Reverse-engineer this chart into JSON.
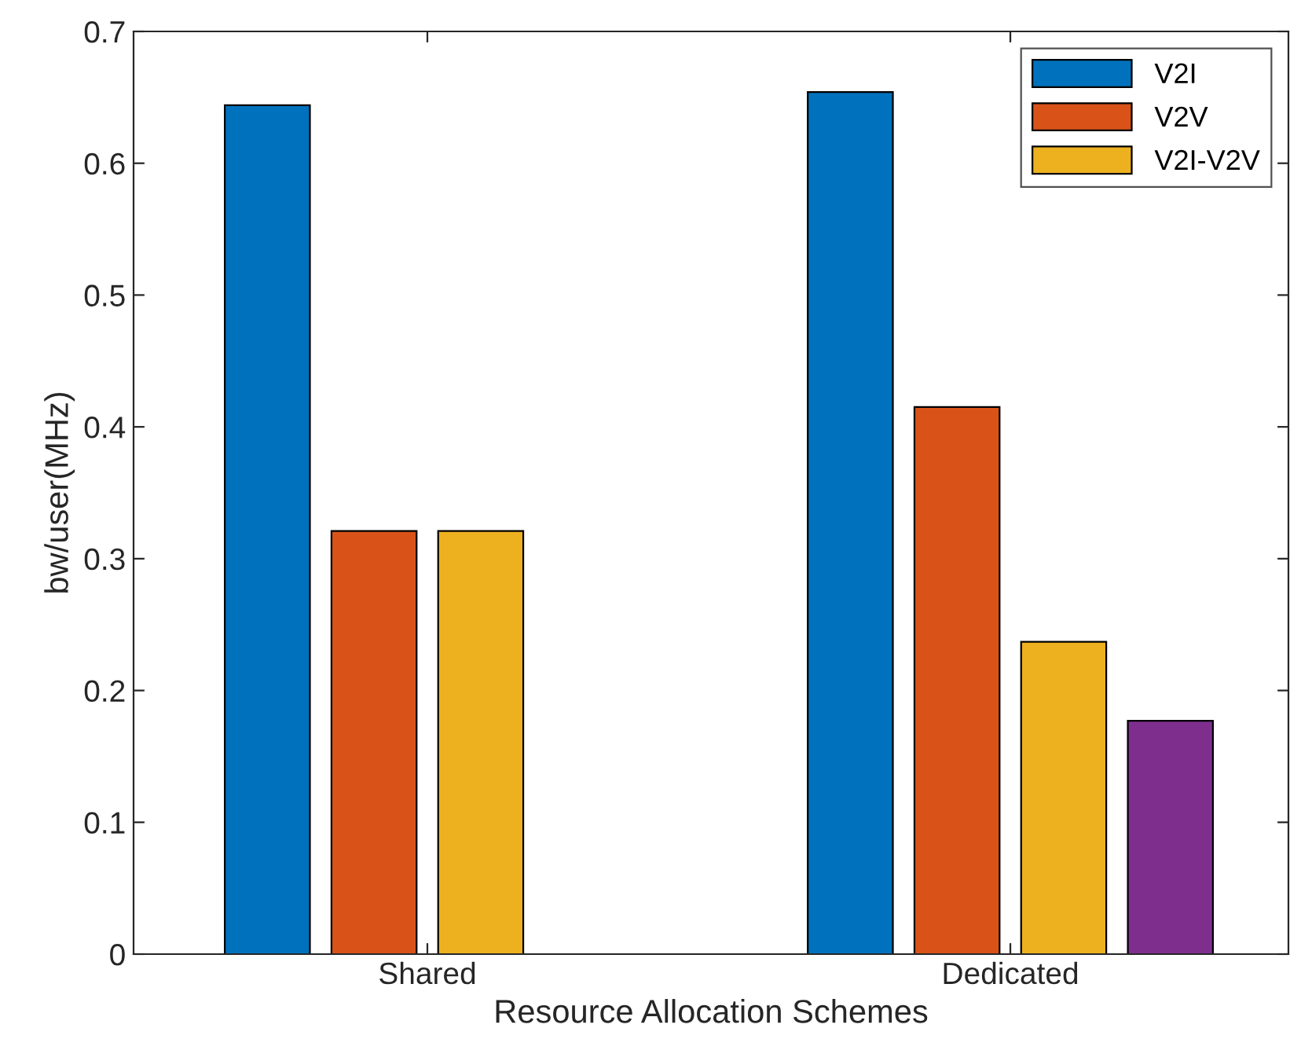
{
  "chart_data": {
    "type": "bar",
    "xlabel": "Resource Allocation Schemes",
    "ylabel": "bw/user(MHz)",
    "categories": [
      "Shared",
      "Dedicated"
    ],
    "series": [
      {
        "name": "V2I",
        "color": "#0072bd",
        "values": [
          0.644,
          0.654
        ]
      },
      {
        "name": "V2V",
        "color": "#d95319",
        "values": [
          0.321,
          0.415
        ]
      },
      {
        "name": "V2I-V2V",
        "color": "#edb120",
        "values": [
          0.321,
          0.237
        ]
      },
      {
        "color": "#7e2f8e",
        "values": [
          0,
          0.177
        ]
      }
    ],
    "ylim": [
      0,
      0.7
    ],
    "yticks": [
      0,
      0.1,
      0.2,
      0.3,
      0.4,
      0.5,
      0.6,
      0.7
    ],
    "grid": false,
    "legend": "top right"
  }
}
